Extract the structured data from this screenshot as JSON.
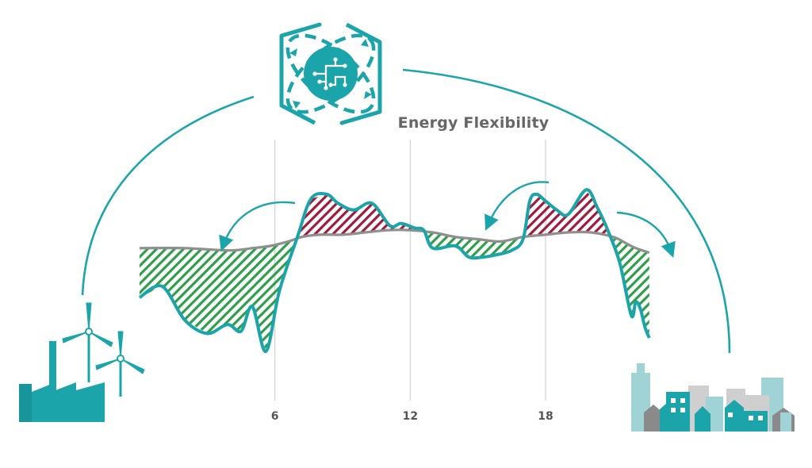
{
  "title": "Energy Flexibility",
  "x_ticks": [
    {
      "label": "6",
      "x": 6
    },
    {
      "label": "12",
      "x": 12
    },
    {
      "label": "18",
      "x": 18
    }
  ],
  "colors": {
    "teal": "#1ba5aa",
    "demand": "#8f8f8f",
    "surplus_hatch": "#2f9e4a",
    "deficit_hatch": "#9e1b3c",
    "gridline": "#d2d2d2",
    "building_light": "#9fd3d6",
    "building_mid": "#cfcfcf",
    "building_dark": "#8a8a8a"
  },
  "icons": {
    "center": "energy-management-hub-icon",
    "left": "power-plant-wind-turbines-icon",
    "right": "city-buildings-icon"
  },
  "chart_data": {
    "type": "area",
    "title": "Energy Flexibility",
    "xlabel": "",
    "ylabel": "",
    "xlim": [
      0,
      24
    ],
    "ylim": [
      0,
      100
    ],
    "grid": true,
    "x_ticks": [
      6,
      12,
      18
    ],
    "series": [
      {
        "x": [
          0,
          2,
          4,
          5,
          5.8,
          6.6,
          7.2,
          8,
          9,
          10,
          11,
          12,
          13,
          14,
          15,
          16,
          17,
          18,
          19,
          20,
          21,
          21.6,
          22,
          22.6
        ],
        "values": [
          52,
          52,
          51,
          52,
          53,
          55,
          57,
          58,
          58,
          59,
          60,
          60,
          59,
          57,
          56,
          55,
          57,
          58,
          59,
          59,
          57,
          54,
          52,
          50
        ]
      },
      {
        "x": [
          0,
          1,
          2,
          3,
          3.9,
          4.5,
          5,
          5.6,
          6.2,
          7,
          7.6,
          8.3,
          8.8,
          9.5,
          10.3,
          11.1,
          11.6,
          12.2,
          12.6,
          13,
          14,
          14.6,
          15.2,
          15.8,
          16.5,
          17,
          17.3,
          17.6,
          18,
          18.5,
          19,
          19.8,
          20.3,
          20.8,
          21.3,
          21.8,
          22,
          22.2,
          22.4,
          22.6
        ],
        "values": [
          30,
          35,
          20,
          14,
          18,
          15,
          26,
          6,
          33,
          57,
          74,
          76,
          72,
          69,
          72,
          62,
          63,
          61,
          60,
          52,
          53,
          48,
          48,
          49,
          51,
          56,
          73,
          76,
          73,
          69,
          67,
          78,
          70,
          59,
          45,
          22,
          28,
          25,
          17,
          12
        ]
      }
    ]
  }
}
